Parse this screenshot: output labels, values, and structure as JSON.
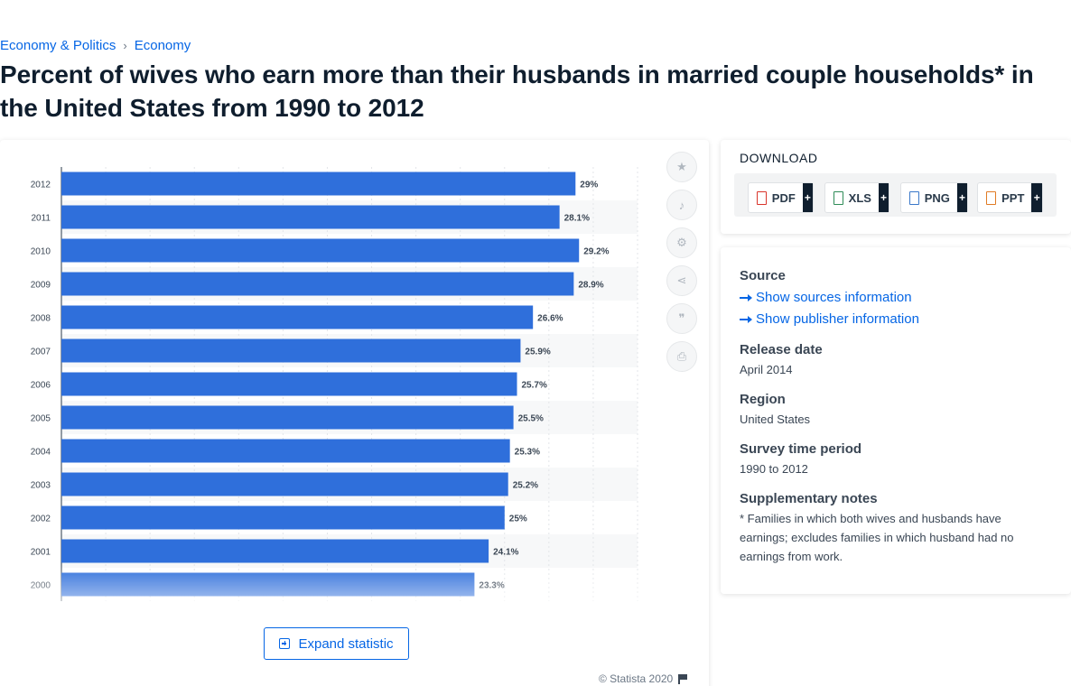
{
  "breadcrumb": {
    "items": [
      "Economy & Politics",
      "Economy"
    ],
    "separator": "›"
  },
  "page_title": "Percent of wives who earn more than their husbands in married couple households* in the United States from 1990 to 2012",
  "expand_label": "Expand statistic",
  "copyright": "© Statista 2020",
  "side_icons": [
    "star-icon",
    "bell-icon",
    "gear-icon",
    "share-icon",
    "quote-icon",
    "print-icon"
  ],
  "download": {
    "title": "DOWNLOAD",
    "buttons": [
      {
        "label": "PDF",
        "icon": "pdf-file-icon",
        "color": "#d9342b"
      },
      {
        "label": "XLS",
        "icon": "xls-file-icon",
        "color": "#2e8b57"
      },
      {
        "label": "PNG",
        "icon": "png-file-icon",
        "color": "#3a78c9"
      },
      {
        "label": "PPT",
        "icon": "ppt-file-icon",
        "color": "#e07b24"
      }
    ],
    "plus": "+"
  },
  "meta": {
    "source_heading": "Source",
    "show_sources": "Show sources information",
    "show_publisher": "Show publisher information",
    "release_heading": "Release date",
    "release_value": "April 2014",
    "region_heading": "Region",
    "region_value": "United States",
    "survey_heading": "Survey time period",
    "survey_value": "1990 to 2012",
    "notes_heading": "Supplementary notes",
    "notes_value": "* Families in which both wives and husbands have earnings; excludes families in which husband had no earnings from work."
  },
  "colors": {
    "bar": "#2f6fdb",
    "accent": "#0666e5"
  },
  "chart_data": {
    "type": "bar",
    "orientation": "horizontal",
    "categories": [
      "2012",
      "2011",
      "2010",
      "2009",
      "2008",
      "2007",
      "2006",
      "2005",
      "2004",
      "2003",
      "2002",
      "2001",
      "2000"
    ],
    "values": [
      29,
      28.1,
      29.2,
      28.9,
      26.6,
      25.9,
      25.7,
      25.5,
      25.3,
      25.2,
      25,
      24.1,
      23.3
    ],
    "value_labels": [
      "29%",
      "28.1%",
      "29.2%",
      "28.9%",
      "26.6%",
      "25.9%",
      "25.7%",
      "25.5%",
      "25.3%",
      "25.2%",
      "25%",
      "24.1%",
      "23.3%"
    ],
    "xlim": [
      0,
      32.5
    ],
    "grid": true
  }
}
